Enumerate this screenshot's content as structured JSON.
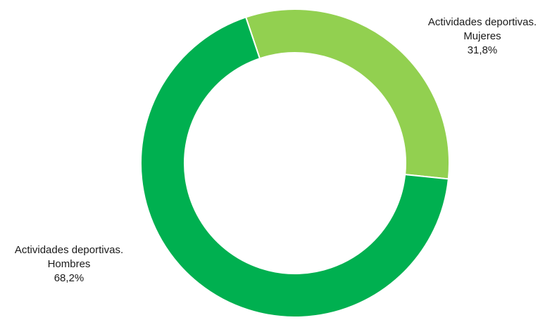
{
  "chart_data": {
    "type": "pie",
    "donut": true,
    "title": "",
    "legend": "none",
    "series": [
      {
        "name_line1": "Actividades deportivas.",
        "name_line2": "Mujeres",
        "value": 31.8,
        "value_label": "31,8%",
        "color": "#92d050"
      },
      {
        "name_line1": "Actividades deportivas.",
        "name_line2": "Hombres",
        "value": 68.2,
        "value_label": "68,2%",
        "color": "#00b050"
      }
    ]
  }
}
